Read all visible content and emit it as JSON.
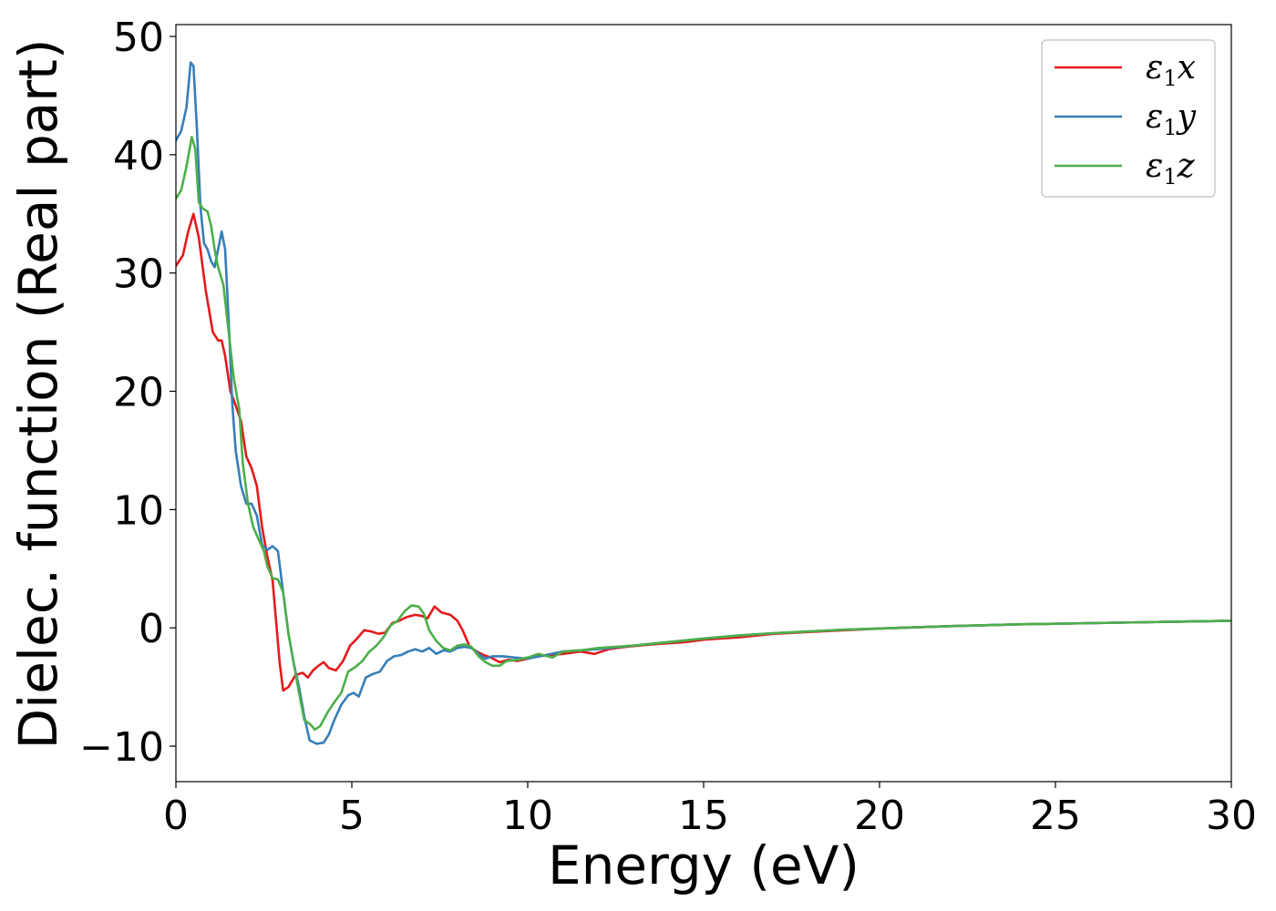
{
  "chart_data": {
    "type": "line",
    "title": "",
    "xlabel": "Energy (eV)",
    "ylabel": "Dielec. function (Real part)",
    "xlim": [
      0,
      30
    ],
    "ylim": [
      -13,
      51
    ],
    "x_ticks": [
      0,
      5,
      10,
      15,
      20,
      25,
      30
    ],
    "y_ticks": [
      -10,
      0,
      10,
      20,
      30,
      40,
      50
    ],
    "x_tick_labels": [
      "0",
      "5",
      "10",
      "15",
      "20",
      "25",
      "30"
    ],
    "y_tick_labels": [
      "−10",
      "0",
      "10",
      "20",
      "30",
      "40",
      "50"
    ],
    "grid": false,
    "legend_position": "top-right",
    "series": [
      {
        "name": "ε1x",
        "legend_base": "ε",
        "legend_sub": "1",
        "legend_var": "x",
        "color": "#e41a1c",
        "points": [
          [
            0,
            30.6
          ],
          [
            0.2,
            31.5
          ],
          [
            0.35,
            33.5
          ],
          [
            0.5,
            35
          ],
          [
            0.65,
            33
          ],
          [
            0.85,
            28.5
          ],
          [
            1.05,
            25
          ],
          [
            1.2,
            24.3
          ],
          [
            1.3,
            24.3
          ],
          [
            1.4,
            23
          ],
          [
            1.55,
            20
          ],
          [
            1.7,
            18.8
          ],
          [
            1.85,
            17.5
          ],
          [
            2.0,
            14.5
          ],
          [
            2.15,
            13.5
          ],
          [
            2.3,
            12
          ],
          [
            2.45,
            8.5
          ],
          [
            2.6,
            6
          ],
          [
            2.75,
            4
          ],
          [
            2.85,
            0.5
          ],
          [
            2.95,
            -3
          ],
          [
            3.05,
            -5.3
          ],
          [
            3.2,
            -5
          ],
          [
            3.4,
            -4
          ],
          [
            3.6,
            -3.8
          ],
          [
            3.75,
            -4.2
          ],
          [
            3.9,
            -3.6
          ],
          [
            4.05,
            -3.2
          ],
          [
            4.2,
            -2.9
          ],
          [
            4.35,
            -3.4
          ],
          [
            4.55,
            -3.6
          ],
          [
            4.75,
            -2.8
          ],
          [
            4.95,
            -1.5
          ],
          [
            5.15,
            -0.9
          ],
          [
            5.35,
            -0.2
          ],
          [
            5.55,
            -0.3
          ],
          [
            5.75,
            -0.5
          ],
          [
            5.95,
            -0.4
          ],
          [
            6.15,
            0.4
          ],
          [
            6.35,
            0.6
          ],
          [
            6.55,
            0.9
          ],
          [
            6.8,
            1.1
          ],
          [
            7.0,
            1.0
          ],
          [
            7.15,
            0.8
          ],
          [
            7.35,
            1.8
          ],
          [
            7.55,
            1.3
          ],
          [
            7.8,
            1.1
          ],
          [
            8.0,
            0.6
          ],
          [
            8.15,
            -0.2
          ],
          [
            8.35,
            -1.6
          ],
          [
            8.55,
            -2.0
          ],
          [
            8.75,
            -2.3
          ],
          [
            8.95,
            -2.5
          ],
          [
            9.2,
            -2.9
          ],
          [
            9.45,
            -2.7
          ],
          [
            9.7,
            -2.8
          ],
          [
            10.0,
            -2.6
          ],
          [
            10.3,
            -2.4
          ],
          [
            10.6,
            -2.3
          ],
          [
            11.0,
            -2.2
          ],
          [
            11.5,
            -2.0
          ],
          [
            11.9,
            -2.2
          ],
          [
            12.3,
            -1.8
          ],
          [
            12.8,
            -1.6
          ],
          [
            13.5,
            -1.4
          ],
          [
            14.0,
            -1.3
          ],
          [
            14.5,
            -1.2
          ],
          [
            15.0,
            -1.0
          ],
          [
            16.0,
            -0.8
          ],
          [
            17.0,
            -0.5
          ],
          [
            18.0,
            -0.35
          ],
          [
            19.0,
            -0.2
          ],
          [
            20.0,
            -0.05
          ],
          [
            21.0,
            0.05
          ],
          [
            22.0,
            0.15
          ],
          [
            24.0,
            0.3
          ],
          [
            26.0,
            0.4
          ],
          [
            28.0,
            0.5
          ],
          [
            30.0,
            0.6
          ]
        ]
      },
      {
        "name": "ε1y",
        "legend_base": "ε",
        "legend_sub": "1",
        "legend_var": "y",
        "color": "#377eb8",
        "points": [
          [
            0,
            41.2
          ],
          [
            0.15,
            42
          ],
          [
            0.3,
            44
          ],
          [
            0.42,
            47.8
          ],
          [
            0.5,
            47.5
          ],
          [
            0.6,
            42
          ],
          [
            0.7,
            35.5
          ],
          [
            0.8,
            32.5
          ],
          [
            0.9,
            32
          ],
          [
            1.0,
            31
          ],
          [
            1.1,
            30.5
          ],
          [
            1.2,
            32
          ],
          [
            1.3,
            33.5
          ],
          [
            1.4,
            32
          ],
          [
            1.5,
            26
          ],
          [
            1.6,
            19
          ],
          [
            1.7,
            15
          ],
          [
            1.85,
            12
          ],
          [
            2.0,
            10.5
          ],
          [
            2.15,
            10.5
          ],
          [
            2.3,
            9.5
          ],
          [
            2.45,
            7
          ],
          [
            2.6,
            6.6
          ],
          [
            2.75,
            6.9
          ],
          [
            2.9,
            6.5
          ],
          [
            3.05,
            3
          ],
          [
            3.2,
            -0.5
          ],
          [
            3.35,
            -3
          ],
          [
            3.5,
            -5
          ],
          [
            3.65,
            -7.5
          ],
          [
            3.8,
            -9.5
          ],
          [
            4.0,
            -9.8
          ],
          [
            4.2,
            -9.7
          ],
          [
            4.35,
            -9
          ],
          [
            4.5,
            -7.8
          ],
          [
            4.7,
            -6.5
          ],
          [
            4.9,
            -5.7
          ],
          [
            5.05,
            -5.5
          ],
          [
            5.2,
            -5.8
          ],
          [
            5.4,
            -4.2
          ],
          [
            5.6,
            -3.9
          ],
          [
            5.8,
            -3.7
          ],
          [
            6.0,
            -2.8
          ],
          [
            6.2,
            -2.4
          ],
          [
            6.4,
            -2.3
          ],
          [
            6.6,
            -2.0
          ],
          [
            6.8,
            -1.8
          ],
          [
            7.0,
            -2.0
          ],
          [
            7.2,
            -1.7
          ],
          [
            7.4,
            -2.2
          ],
          [
            7.6,
            -1.9
          ],
          [
            7.8,
            -2.0
          ],
          [
            8.0,
            -1.7
          ],
          [
            8.2,
            -1.6
          ],
          [
            8.4,
            -1.7
          ],
          [
            8.6,
            -2.2
          ],
          [
            8.8,
            -2.6
          ],
          [
            9.0,
            -2.4
          ],
          [
            9.3,
            -2.4
          ],
          [
            9.6,
            -2.5
          ],
          [
            10.0,
            -2.6
          ],
          [
            10.5,
            -2.3
          ],
          [
            11.0,
            -2.0
          ],
          [
            11.5,
            -1.9
          ],
          [
            12.0,
            -1.8
          ],
          [
            13.0,
            -1.5
          ],
          [
            14.0,
            -1.2
          ],
          [
            15.0,
            -0.9
          ],
          [
            16.0,
            -0.65
          ],
          [
            17.0,
            -0.45
          ],
          [
            18.0,
            -0.3
          ],
          [
            19.0,
            -0.15
          ],
          [
            20.0,
            -0.05
          ],
          [
            22.0,
            0.15
          ],
          [
            24.0,
            0.3
          ],
          [
            26.0,
            0.4
          ],
          [
            28.0,
            0.5
          ],
          [
            30.0,
            0.6
          ]
        ]
      },
      {
        "name": "ε1z",
        "legend_base": "ε",
        "legend_sub": "1",
        "legend_var": "z",
        "color": "#4daf4a",
        "points": [
          [
            0,
            36.3
          ],
          [
            0.15,
            37
          ],
          [
            0.3,
            39
          ],
          [
            0.45,
            41.5
          ],
          [
            0.55,
            40.5
          ],
          [
            0.65,
            36
          ],
          [
            0.75,
            35.5
          ],
          [
            0.9,
            35.2
          ],
          [
            1.0,
            34
          ],
          [
            1.1,
            32
          ],
          [
            1.2,
            30.5
          ],
          [
            1.35,
            29
          ],
          [
            1.5,
            25
          ],
          [
            1.65,
            21
          ],
          [
            1.8,
            18.5
          ],
          [
            1.9,
            14
          ],
          [
            2.05,
            10.5
          ],
          [
            2.2,
            8.5
          ],
          [
            2.35,
            7.5
          ],
          [
            2.5,
            6.5
          ],
          [
            2.6,
            5.2
          ],
          [
            2.75,
            4.2
          ],
          [
            2.9,
            4.1
          ],
          [
            3.05,
            3
          ],
          [
            3.2,
            -0.5
          ],
          [
            3.35,
            -3
          ],
          [
            3.5,
            -5.5
          ],
          [
            3.65,
            -7.8
          ],
          [
            3.8,
            -8.1
          ],
          [
            3.95,
            -8.6
          ],
          [
            4.1,
            -8.3
          ],
          [
            4.3,
            -7.2
          ],
          [
            4.5,
            -6.3
          ],
          [
            4.7,
            -5.5
          ],
          [
            4.9,
            -3.7
          ],
          [
            5.1,
            -3.3
          ],
          [
            5.3,
            -2.8
          ],
          [
            5.5,
            -2.0
          ],
          [
            5.7,
            -1.5
          ],
          [
            5.9,
            -0.8
          ],
          [
            6.1,
            0.2
          ],
          [
            6.3,
            0.6
          ],
          [
            6.5,
            1.4
          ],
          [
            6.7,
            1.9
          ],
          [
            6.9,
            1.8
          ],
          [
            7.05,
            1.2
          ],
          [
            7.2,
            -0.2
          ],
          [
            7.4,
            -1.1
          ],
          [
            7.6,
            -1.7
          ],
          [
            7.8,
            -1.9
          ],
          [
            8.0,
            -1.5
          ],
          [
            8.2,
            -1.4
          ],
          [
            8.4,
            -1.6
          ],
          [
            8.6,
            -2.4
          ],
          [
            8.8,
            -2.9
          ],
          [
            9.0,
            -3.2
          ],
          [
            9.2,
            -3.2
          ],
          [
            9.4,
            -2.8
          ],
          [
            9.7,
            -2.7
          ],
          [
            10.0,
            -2.5
          ],
          [
            10.3,
            -2.2
          ],
          [
            10.7,
            -2.5
          ],
          [
            11.0,
            -2.0
          ],
          [
            11.5,
            -1.9
          ],
          [
            12.0,
            -1.7
          ],
          [
            13.0,
            -1.5
          ],
          [
            14.0,
            -1.2
          ],
          [
            15.0,
            -0.9
          ],
          [
            16.0,
            -0.65
          ],
          [
            17.0,
            -0.45
          ],
          [
            18.0,
            -0.3
          ],
          [
            19.0,
            -0.15
          ],
          [
            20.0,
            -0.05
          ],
          [
            22.0,
            0.15
          ],
          [
            24.0,
            0.3
          ],
          [
            26.0,
            0.4
          ],
          [
            28.0,
            0.5
          ],
          [
            30.0,
            0.6
          ]
        ]
      }
    ]
  }
}
